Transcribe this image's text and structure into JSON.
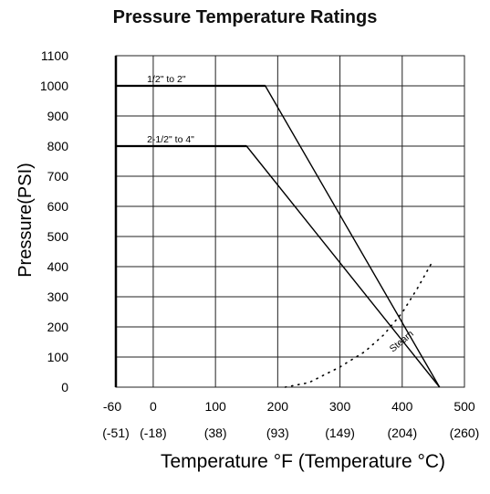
{
  "chart_data": {
    "type": "line",
    "title": "Pressure Temperature Ratings",
    "xlabel": "Temperature °F (Temperature °C)",
    "ylabel": "Pressure(PSI)",
    "xlim": [
      -60,
      500
    ],
    "ylim": [
      0,
      1100
    ],
    "grid": true,
    "x_ticks": [
      -60,
      0,
      100,
      200,
      300,
      400,
      500
    ],
    "x_tick_labels": [
      "-60",
      "0",
      "100",
      "200",
      "300",
      "400",
      "500"
    ],
    "x_tick_labels_celsius": [
      "(-51)",
      "(-18)",
      "(38)",
      "(93)",
      "(149)",
      "(204)",
      "(260)"
    ],
    "y_ticks": [
      0,
      100,
      200,
      300,
      400,
      500,
      600,
      700,
      800,
      900,
      1000,
      1100
    ],
    "y_tick_labels": [
      "0",
      "100",
      "200",
      "300",
      "400",
      "500",
      "600",
      "700",
      "800",
      "900",
      "1000",
      "1100"
    ],
    "series": [
      {
        "name": "1/2\" to 2\"",
        "style": "solid",
        "color": "#000000",
        "x": [
          -60,
          180,
          460
        ],
        "y": [
          1000,
          1000,
          0
        ]
      },
      {
        "name": "2-1/2\" to 4\"",
        "style": "solid",
        "color": "#000000",
        "x": [
          -60,
          150,
          460
        ],
        "y": [
          800,
          800,
          0
        ]
      },
      {
        "name": "Steam",
        "style": "dotted",
        "color": "#000000",
        "x": [
          212,
          250,
          300,
          340,
          370,
          400,
          425,
          450
        ],
        "y": [
          0,
          15,
          67,
          118,
          173,
          247,
          330,
          422
        ]
      }
    ]
  }
}
